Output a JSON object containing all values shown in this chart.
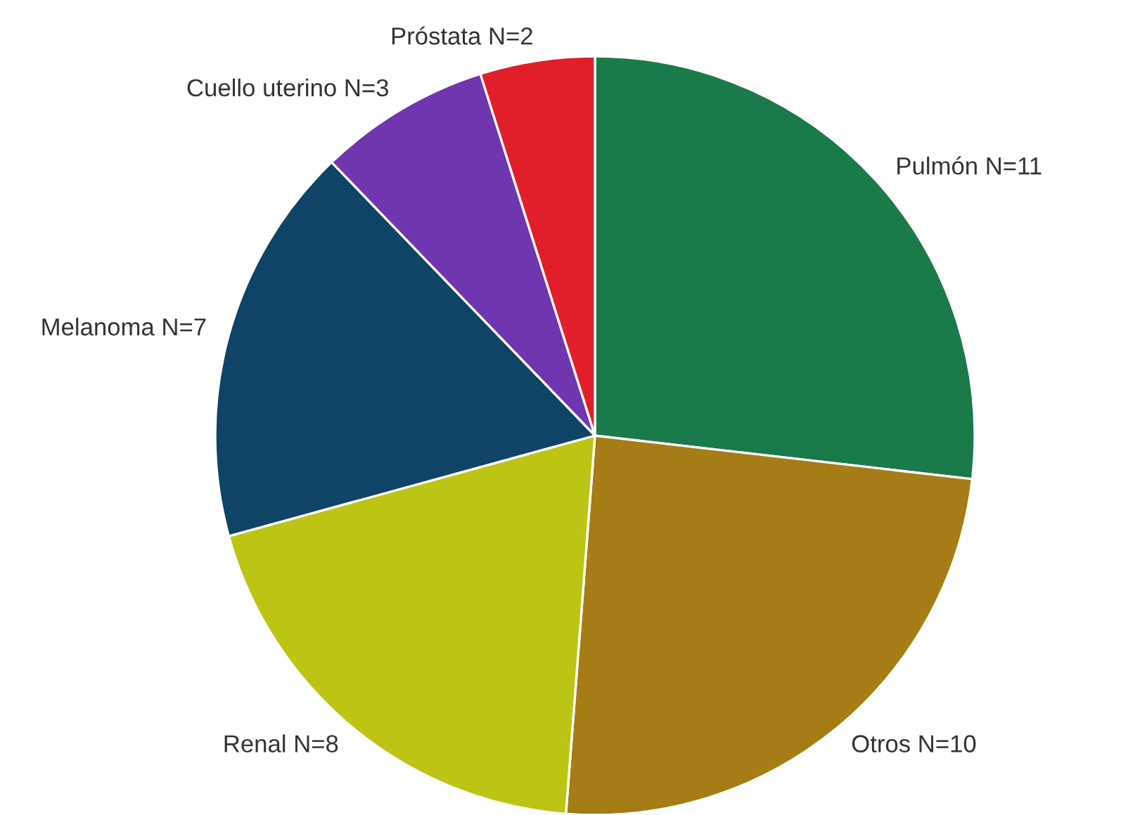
{
  "chart_data": {
    "type": "pie",
    "categories": [
      "Pulmón N=11",
      "Otros N=10",
      "Renal N=8",
      "Melanoma N=7",
      "Cuello uterino N=3",
      "Próstata N=2"
    ],
    "values": [
      11,
      10,
      8,
      7,
      3,
      2
    ],
    "colors": [
      "#1b7a4a",
      "#a57c16",
      "#bdc514",
      "#0f4466",
      "#6f36b0",
      "#e01f2b"
    ],
    "legend": false
  }
}
